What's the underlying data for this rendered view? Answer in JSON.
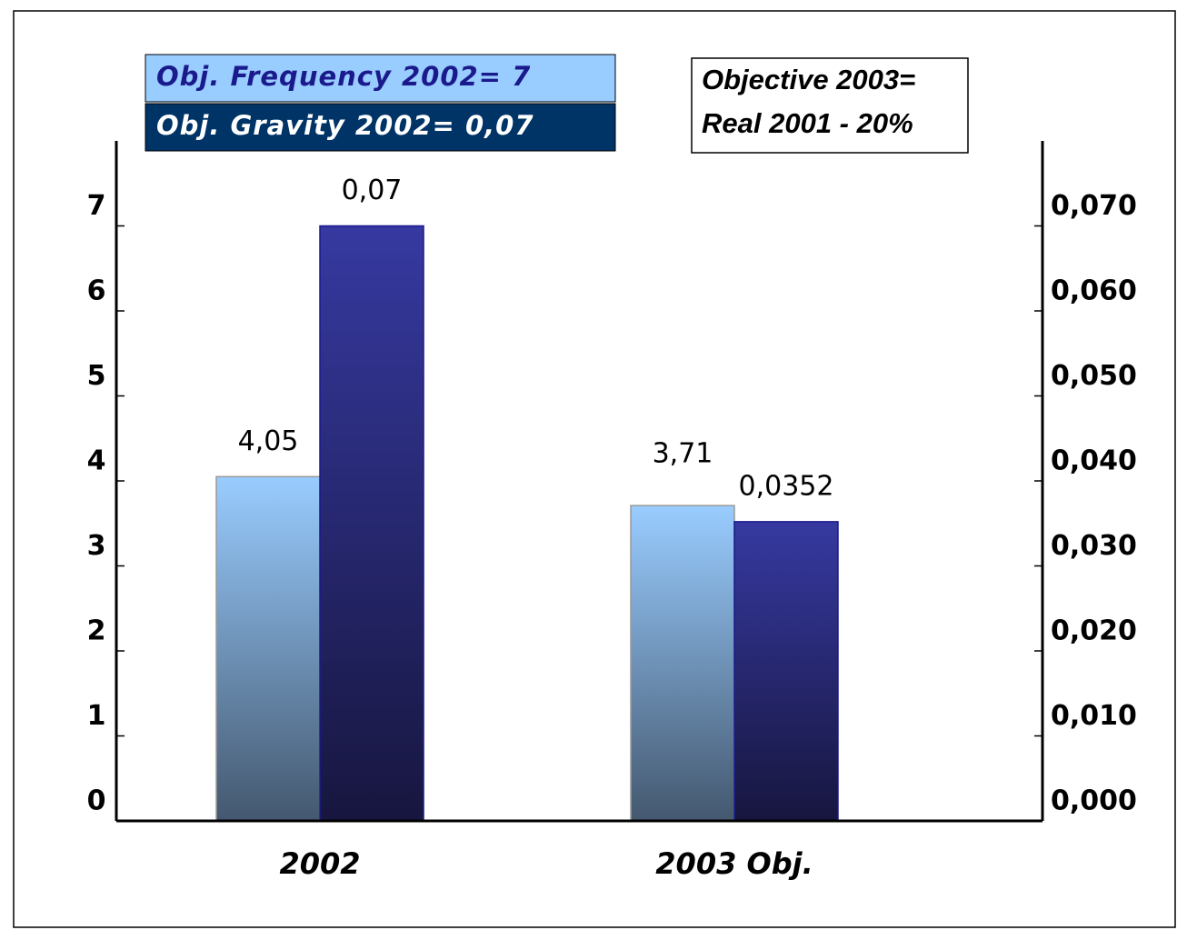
{
  "chart_data": {
    "type": "bar",
    "categories": [
      "2002",
      "2003 Obj."
    ],
    "series": [
      {
        "name": "Obj. Frequency 2002= 7",
        "color": "#99ccff",
        "values": [
          4.05,
          3.71
        ],
        "value_labels": [
          "4,05",
          "3,71"
        ]
      },
      {
        "name": "Obj. Gravity 2002= 0,07",
        "color": "#003366",
        "axis": "y2",
        "values": [
          0.07,
          0.0352
        ],
        "value_labels": [
          "0,07",
          "0,0352"
        ]
      }
    ],
    "ylim": [
      0,
      8
    ],
    "yticks": [
      0,
      1,
      2,
      3,
      4,
      5,
      6,
      7
    ],
    "y2lim": [
      0,
      0.08
    ],
    "y2ticks": [
      {
        "value": 0,
        "label": "0,000"
      },
      {
        "value": 0.01,
        "label": "0,010"
      },
      {
        "value": 0.02,
        "label": "0,020"
      },
      {
        "value": 0.03,
        "label": "0,030"
      },
      {
        "value": 0.04,
        "label": "0,040"
      },
      {
        "value": 0.05,
        "label": "0,050"
      },
      {
        "value": 0.06,
        "label": "0,060"
      },
      {
        "value": 0.07,
        "label": "0,070"
      }
    ],
    "annotation": [
      "Objective 2003=",
      "Real 2001 - 20%"
    ],
    "grid": false
  }
}
